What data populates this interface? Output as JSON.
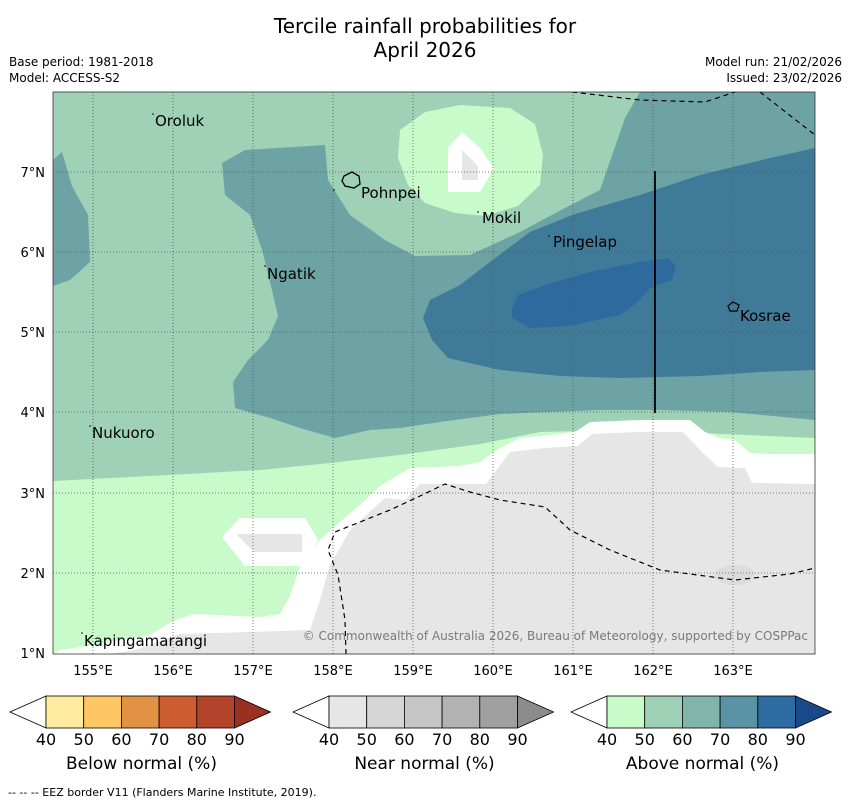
{
  "title_line1": "Tercile rainfall probabilities for",
  "title_line2": "April 2026",
  "meta": {
    "base_period": "Base period: 1981-2018",
    "model": "Model: ACCESS-S2",
    "model_run": "Model run: 21/02/2026",
    "issued": "Issued: 23/02/2026"
  },
  "map": {
    "lon_ticks": [
      "155°E",
      "156°E",
      "157°E",
      "158°E",
      "159°E",
      "160°E",
      "161°E",
      "162°E",
      "163°E"
    ],
    "lat_ticks": [
      "7°N",
      "6°N",
      "5°N",
      "4°N",
      "3°N",
      "2°N",
      "1°N"
    ],
    "places": [
      "Oroluk",
      "Pohnpei",
      "Mokil",
      "Pingelap",
      "Ngatik",
      "Kosrae",
      "Nukuoro",
      "Kapingamarangi"
    ],
    "copyright": "© Commonwealth of Australia 2026, Bureau of Meteorology, supported by COSPPac"
  },
  "colorbars": [
    {
      "label": "Below normal (%)",
      "ticks": [
        "40",
        "50",
        "60",
        "70",
        "80",
        "90"
      ],
      "colors": [
        "#ffffff",
        "#ffeca0",
        "#fdc763",
        "#e29243",
        "#cd5d2f",
        "#b3432a",
        "#9a3120"
      ]
    },
    {
      "label": "Near normal (%)",
      "ticks": [
        "40",
        "50",
        "60",
        "70",
        "80",
        "90"
      ],
      "colors": [
        "#ffffff",
        "#e6e6e6",
        "#d6d6d6",
        "#c6c6c6",
        "#b2b2b2",
        "#a0a0a0",
        "#8c8c8c"
      ]
    },
    {
      "label": "Above normal (%)",
      "ticks": [
        "40",
        "50",
        "60",
        "70",
        "80",
        "90"
      ],
      "colors": [
        "#ffffff",
        "#c9fac9",
        "#9ed1b6",
        "#82b5aa",
        "#5a94a4",
        "#2e6ba0",
        "#1a4a8a"
      ]
    }
  ],
  "footer": "--  --  -- EEZ border V11 (Flanders Marine Institute, 2019)."
}
